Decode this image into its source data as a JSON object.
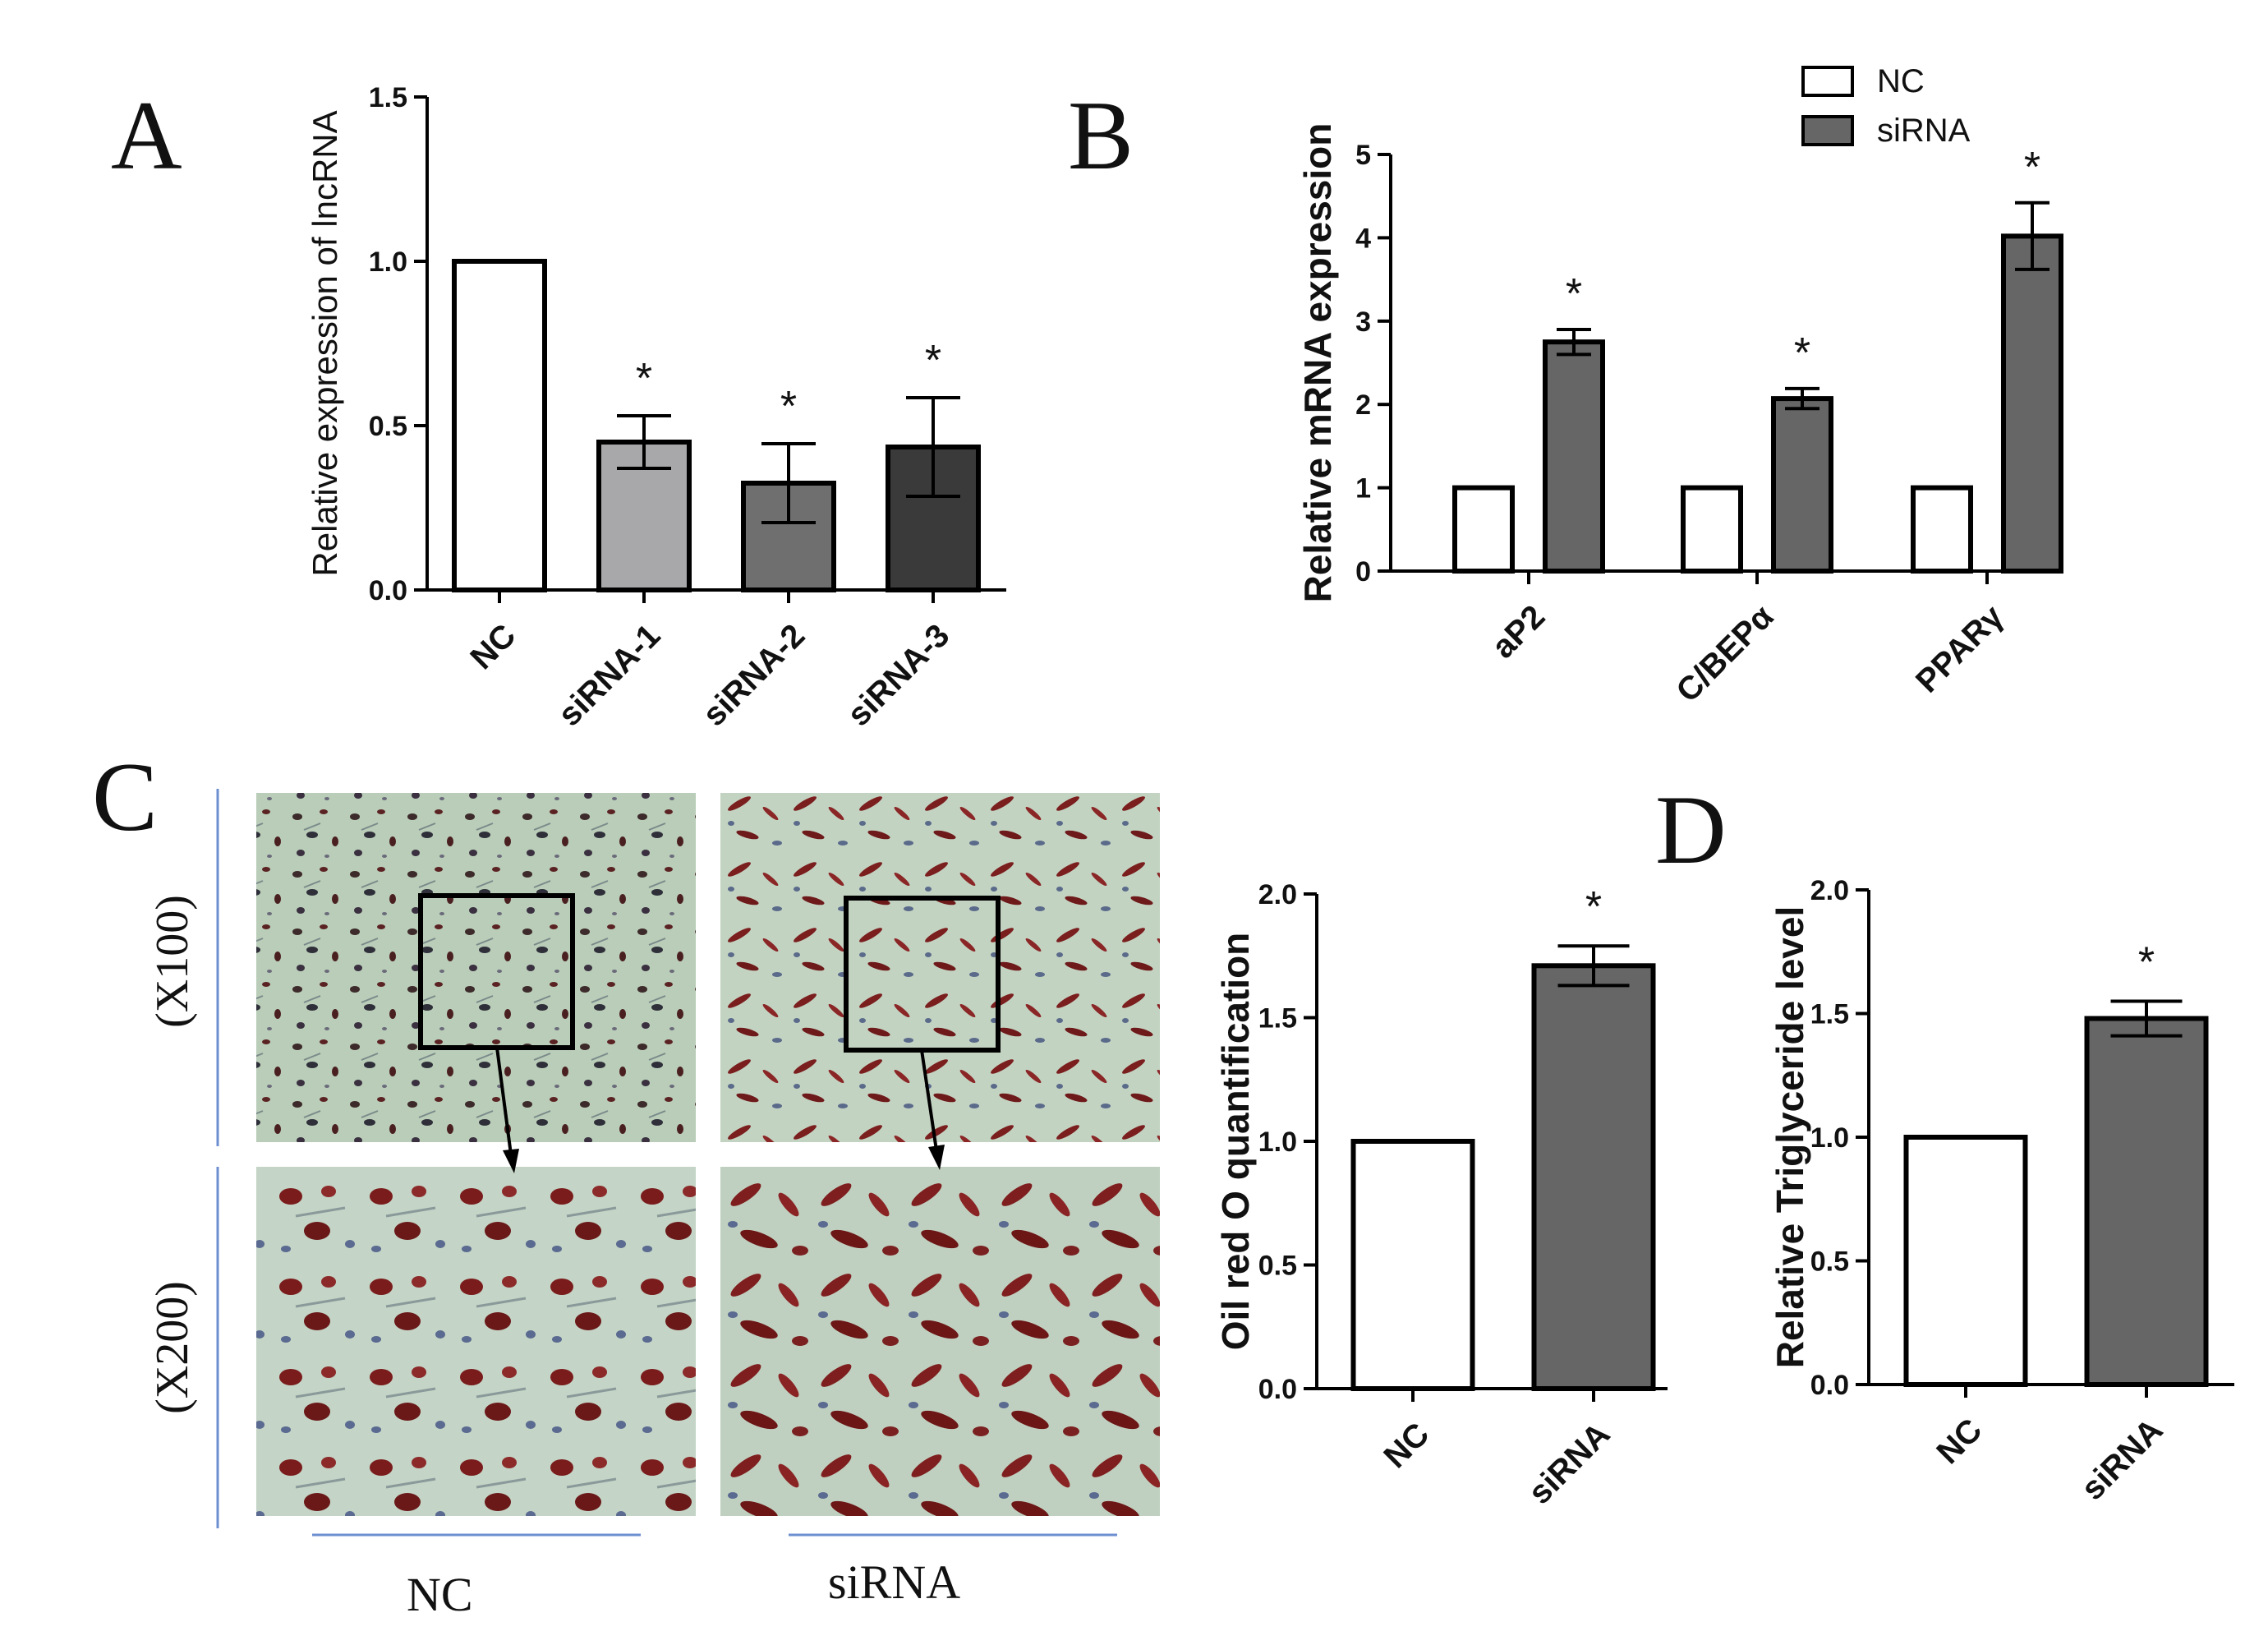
{
  "panels": {
    "A": "A",
    "B": "B",
    "C": "C",
    "D": "D"
  },
  "micrographs": {
    "magnifications": [
      "(X100)",
      "(X200)"
    ],
    "groups": [
      "NC",
      "siRNA"
    ],
    "colors": {
      "background": "#c6d6c6",
      "stain": "#7a1e1e",
      "nuclei": "#4a5a7a"
    }
  },
  "chart_data": [
    {
      "id": "A",
      "type": "bar",
      "ylabel": "Relative  expression of lncRNA",
      "ylim": [
        0,
        1.5
      ],
      "yticks": [
        "0.0",
        "0.5",
        "1.0",
        "1.5"
      ],
      "categories": [
        "NC",
        "siRNA-1",
        "siRNA-2",
        "siRNA-3"
      ],
      "values": [
        1.0,
        0.45,
        0.325,
        0.435
      ],
      "errors": [
        0,
        0.08,
        0.12,
        0.15
      ],
      "significance": [
        "",
        "*",
        "*",
        "*"
      ],
      "colors": [
        "#ffffff",
        "#a8a8aa",
        "#6f6f6f",
        "#3a3a3a"
      ]
    },
    {
      "id": "B",
      "type": "bar",
      "ylabel": "Relative mRNA expression",
      "ylim": [
        0,
        5
      ],
      "yticks": [
        "0",
        "1",
        "2",
        "3",
        "4",
        "5"
      ],
      "categories": [
        "aP2",
        "C/BEPα",
        "PPARγ"
      ],
      "legend_position": "top-right",
      "series": [
        {
          "name": "NC",
          "values": [
            1,
            1,
            1
          ],
          "errors": [
            0,
            0,
            0
          ],
          "significance": [
            "",
            "",
            ""
          ],
          "color": "#ffffff"
        },
        {
          "name": "siRNA",
          "values": [
            2.75,
            2.07,
            4.02
          ],
          "errors": [
            0.15,
            0.12,
            0.4
          ],
          "significance": [
            "*",
            "*",
            "*"
          ],
          "color": "#666666"
        }
      ]
    },
    {
      "id": "C-quant",
      "type": "bar",
      "ylabel": "Oil red O quantification",
      "ylim": [
        0,
        2.0
      ],
      "yticks": [
        "0.0",
        "0.5",
        "1.0",
        "1.5",
        "2.0"
      ],
      "categories": [
        "NC",
        "siRNA"
      ],
      "values": [
        1.0,
        1.71
      ],
      "errors": [
        0,
        0.08
      ],
      "significance": [
        "",
        "*"
      ],
      "colors": [
        "#ffffff",
        "#666666"
      ]
    },
    {
      "id": "D",
      "type": "bar",
      "ylabel": "Relative Triglyceride level",
      "ylim": [
        0,
        2.0
      ],
      "yticks": [
        "0.0",
        "0.5",
        "1.0",
        "1.5",
        "2.0"
      ],
      "categories": [
        "NC",
        "siRNA"
      ],
      "values": [
        1.0,
        1.48
      ],
      "errors": [
        0,
        0.07
      ],
      "significance": [
        "",
        "*"
      ],
      "colors": [
        "#ffffff",
        "#666666"
      ]
    }
  ]
}
